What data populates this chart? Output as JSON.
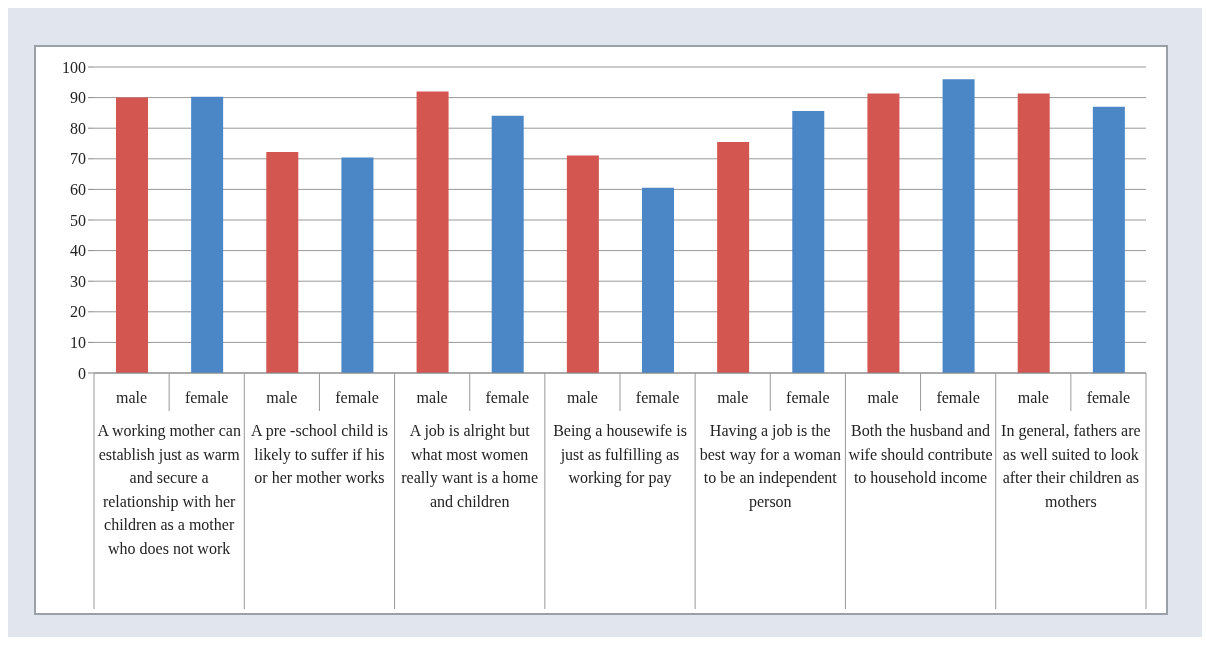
{
  "chart_data": {
    "type": "bar",
    "categories": [
      "A working mother can establish just as warm and secure a relationship with her children as a mother who does not work",
      "A pre -school child is likely to suffer if his or her mother works",
      "A job is alright but what most women really want is a home and children",
      "Being a housewife is just as fulfilling as working for pay",
      "Having a job is the best way for a woman to be an independent person",
      "Both the husband and wife should contribute to household income",
      "In general, fathers are as well suited to look after their children as mothers"
    ],
    "series": [
      {
        "name": "male",
        "color": "#d35650",
        "values": [
          90,
          72.2,
          92,
          71.1,
          75.5,
          91.3,
          91.3
        ]
      },
      {
        "name": "female",
        "color": "#4b87c6",
        "values": [
          90.3,
          70.4,
          84.1,
          60.5,
          85.6,
          96,
          87
        ]
      }
    ],
    "ylim": [
      0,
      100
    ],
    "yticks": [
      0,
      10,
      20,
      30,
      40,
      50,
      60,
      70,
      80,
      90,
      100
    ],
    "grid": "y"
  }
}
